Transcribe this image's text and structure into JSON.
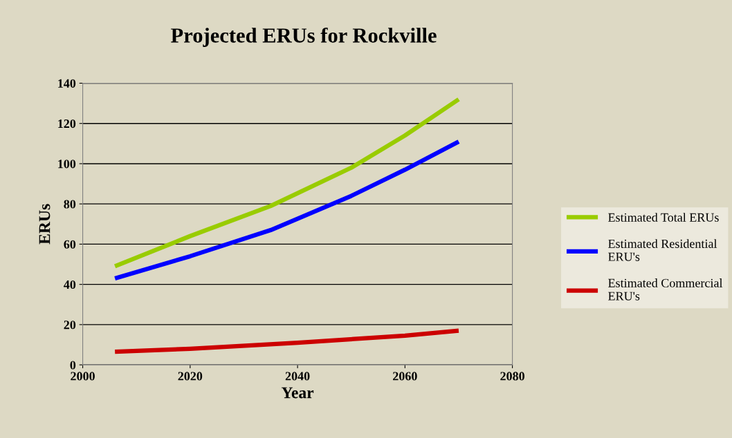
{
  "chart_data": {
    "type": "line",
    "title": "Projected ERUs for Rockville",
    "xlabel": "Year",
    "ylabel": "ERUs",
    "xlim": [
      2000,
      2080
    ],
    "xticks": [
      2000,
      2020,
      2040,
      2060,
      2080
    ],
    "ylim": [
      0,
      140
    ],
    "yticks": [
      0,
      20,
      40,
      60,
      80,
      100,
      120,
      140
    ],
    "grid": "y",
    "legend": "right",
    "marker": "none",
    "series": [
      {
        "name": "Estimated Total ERUs",
        "color": "#99cc00",
        "x": [
          2006,
          2020,
          2035,
          2050,
          2060,
          2070
        ],
        "values": [
          49,
          64,
          79,
          98,
          114,
          132
        ]
      },
      {
        "name": "Estimated Residential\nERU's",
        "color": "#0000ff",
        "x": [
          2006,
          2020,
          2035,
          2050,
          2060,
          2070
        ],
        "values": [
          43,
          54,
          67,
          84,
          97,
          111
        ]
      },
      {
        "name": "Estimated Commercial\nERU's",
        "color": "#cc0000",
        "x": [
          2006,
          2020,
          2040,
          2060,
          2070
        ],
        "values": [
          6.5,
          8,
          11,
          14.5,
          17
        ]
      }
    ]
  }
}
